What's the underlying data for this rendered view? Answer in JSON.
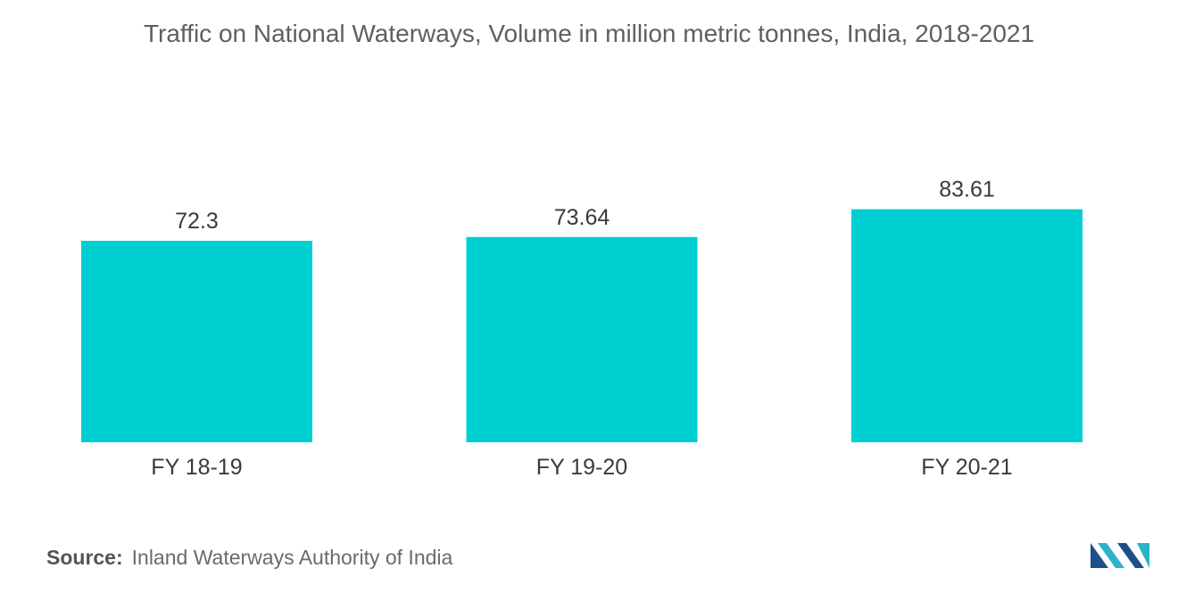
{
  "chart_data": {
    "type": "bar",
    "title": "Traffic on National Waterways, Volume in million metric tonnes, India, 2018-2021",
    "categories": [
      "FY 18-19",
      "FY 19-20",
      "FY 20-21"
    ],
    "values": [
      72.3,
      73.64,
      83.61
    ],
    "value_labels": [
      "72.3",
      "73.64",
      "83.61"
    ],
    "xlabel": "",
    "ylabel": "",
    "grid": false,
    "legend": "none",
    "bar_color": "#00cfd1"
  },
  "source": {
    "label": "Source:",
    "text": "Inland Waterways Authority of India"
  },
  "logo": {
    "icon": "mordor-intelligence-logo-icon",
    "colors": [
      "#1d4f8a",
      "#2bb3c9"
    ]
  }
}
